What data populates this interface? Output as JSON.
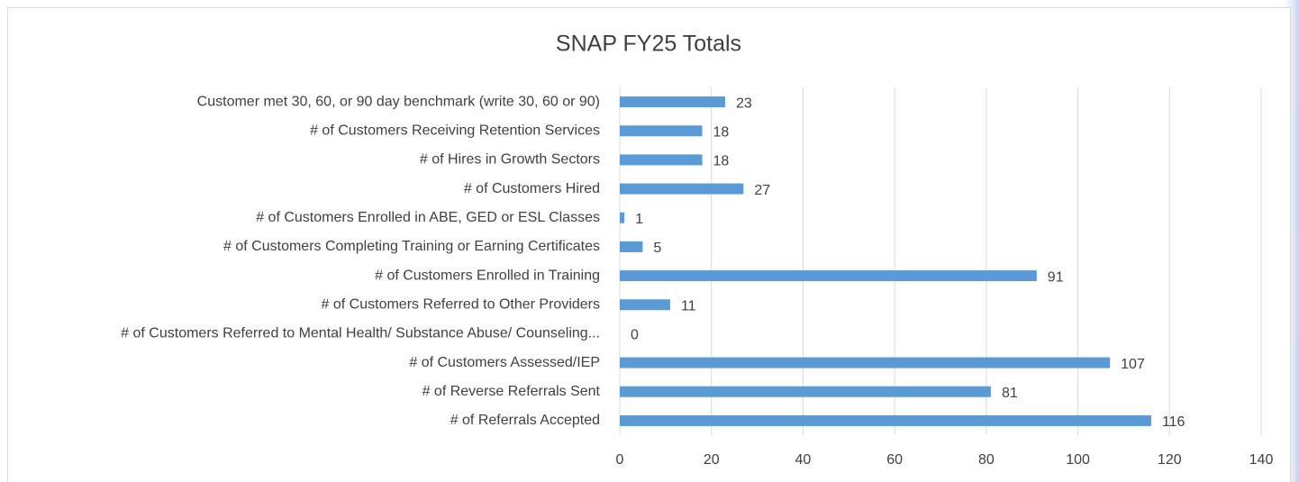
{
  "chart_data": {
    "type": "bar",
    "orientation": "horizontal",
    "title": "SNAP FY25 Totals",
    "categories": [
      "Customer met 30, 60, or 90 day benchmark (write 30, 60 or 90)",
      "# of Customers Receiving Retention Services",
      "# of Hires in Growth Sectors",
      "# of Customers Hired",
      "# of Customers Enrolled in ABE, GED or ESL Classes",
      "# of Customers Completing Training or Earning Certificates",
      "# of Customers Enrolled in Training",
      "# of Customers Referred to Other Providers",
      "# of Customers Referred to Mental Health/ Substance Abuse/ Counseling...",
      "# of Customers Assessed/IEP",
      "# of Reverse Referrals Sent",
      "# of Referrals Accepted"
    ],
    "values": [
      23,
      18,
      18,
      27,
      1,
      5,
      91,
      11,
      0,
      107,
      81,
      116
    ],
    "color": "#5b9bd5",
    "xlim": [
      0,
      140
    ],
    "xticks": [
      0,
      20,
      40,
      60,
      80,
      100,
      120,
      140
    ],
    "grid": true
  }
}
